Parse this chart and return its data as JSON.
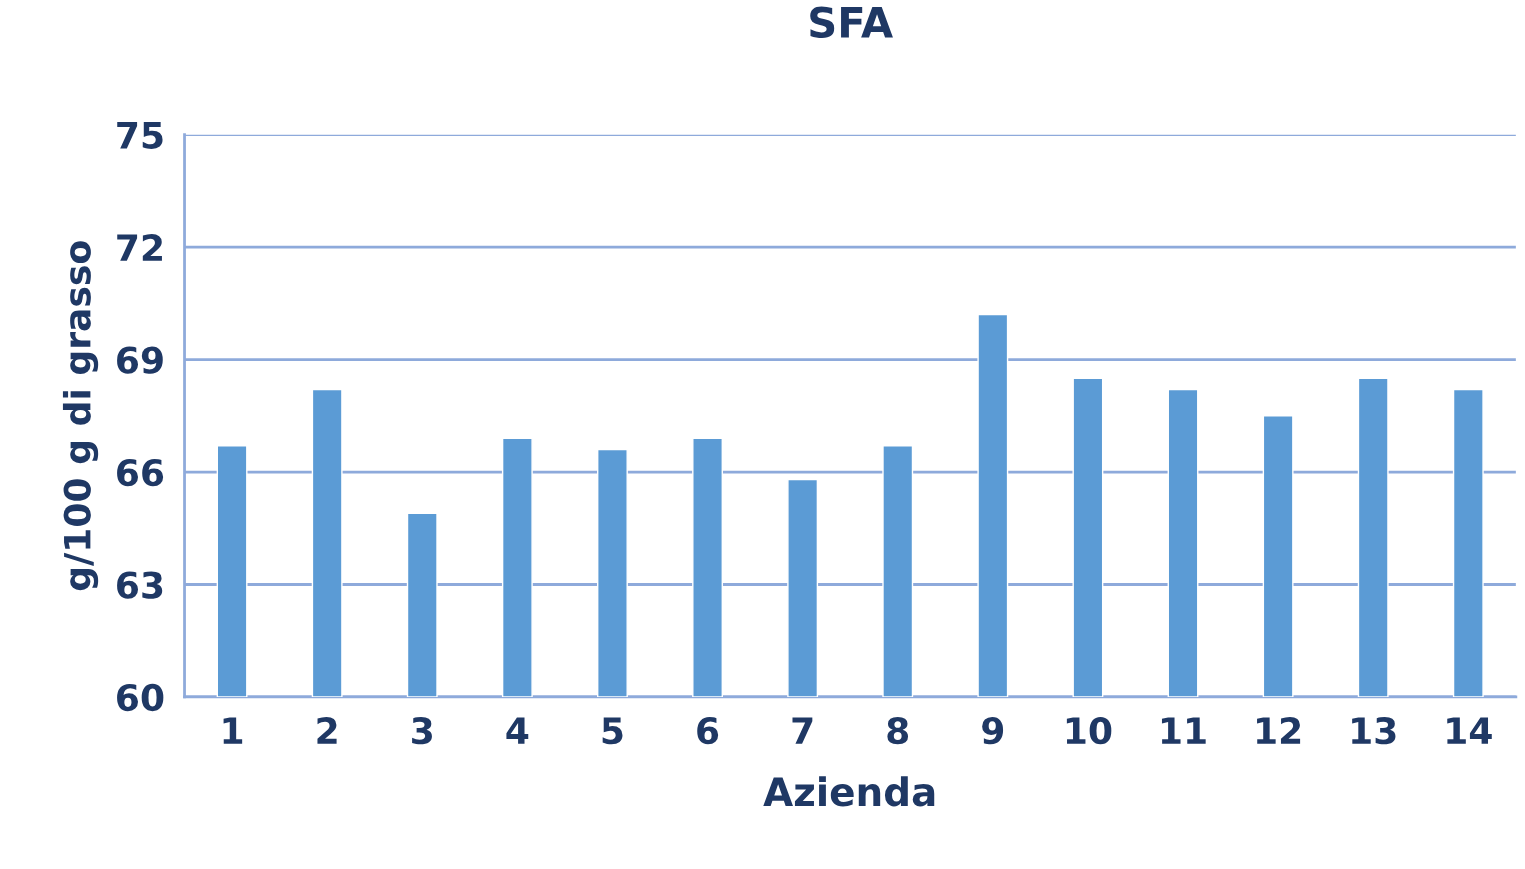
{
  "chart_data": {
    "type": "bar",
    "title": "SFA",
    "xlabel": "Azienda",
    "ylabel": "g/100 g di grasso",
    "categories": [
      "1",
      "2",
      "3",
      "4",
      "5",
      "6",
      "7",
      "8",
      "9",
      "10",
      "11",
      "12",
      "13",
      "14"
    ],
    "values": [
      66.7,
      68.2,
      64.9,
      66.9,
      66.6,
      66.9,
      65.8,
      66.7,
      70.2,
      68.5,
      68.2,
      67.5,
      68.5,
      68.2
    ],
    "color": "#5b9bd5",
    "ylim": [
      60,
      75
    ],
    "yticks": [
      60,
      63,
      66,
      69,
      72,
      75
    ],
    "grid": "y",
    "legend": false
  }
}
